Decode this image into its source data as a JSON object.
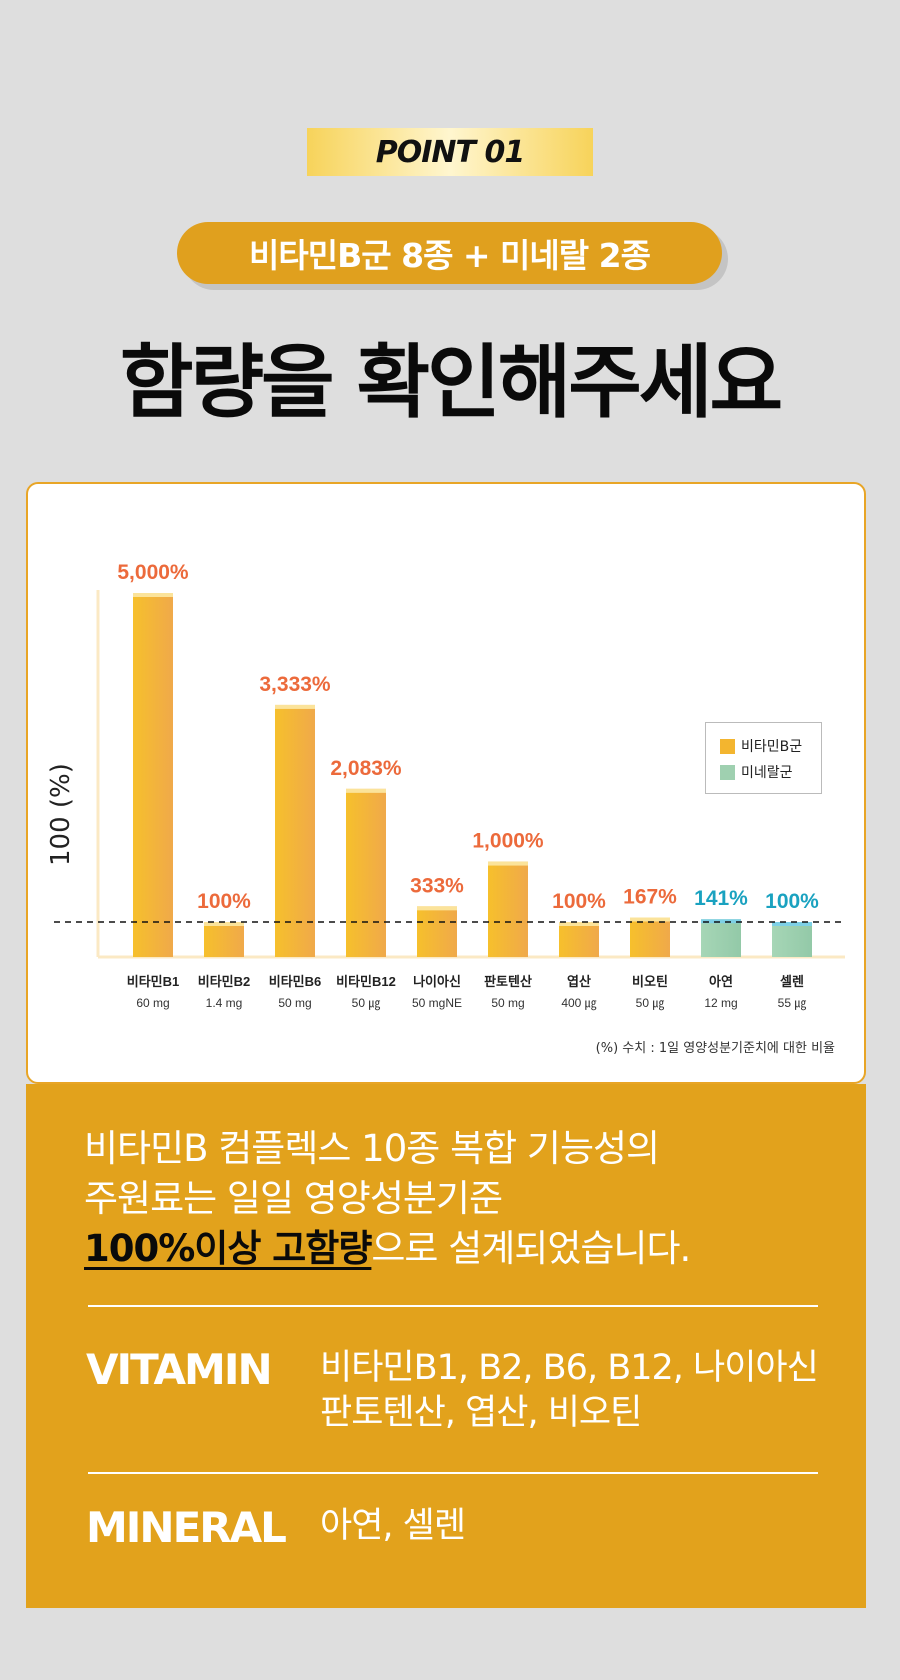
{
  "point_badge": "POINT 01",
  "pill_text": "비타민B군 8종 + 미네랄 2종",
  "headline": "함량을 확인해주세요",
  "legend": [
    {
      "label": "비타민B군",
      "color": "#f3b52f"
    },
    {
      "label": "미네랄군",
      "color": "#9fd0b0"
    }
  ],
  "footnote": "(%) 수치 : 1일 영양성분기준치에 대한 비율",
  "chart_data": {
    "type": "bar",
    "ylabel": "100 (%)",
    "reference_line": 100,
    "categories": [
      {
        "name": "비타민B1",
        "dose": "60 mg",
        "value": 5000,
        "label": "5,000%",
        "group": "vitamin"
      },
      {
        "name": "비타민B2",
        "dose": "1.4 mg",
        "value": 100,
        "label": "100%",
        "group": "vitamin"
      },
      {
        "name": "비타민B6",
        "dose": "50 mg",
        "value": 3333,
        "label": "3,333%",
        "group": "vitamin"
      },
      {
        "name": "비타민B12",
        "dose": "50 ㎍",
        "value": 2083,
        "label": "2,083%",
        "group": "vitamin"
      },
      {
        "name": "나이아신",
        "dose": "50 mgNE",
        "value": 333,
        "label": "333%",
        "group": "vitamin"
      },
      {
        "name": "판토텐산",
        "dose": "50 mg",
        "value": 1000,
        "label": "1,000%",
        "group": "vitamin"
      },
      {
        "name": "엽산",
        "dose": "400 ㎍",
        "value": 100,
        "label": "100%",
        "group": "vitamin"
      },
      {
        "name": "비오틴",
        "dose": "50 ㎍",
        "value": 167,
        "label": "167%",
        "group": "vitamin"
      },
      {
        "name": "아연",
        "dose": "12 mg",
        "value": 141,
        "label": "141%",
        "group": "mineral"
      },
      {
        "name": "셀렌",
        "dose": "55 ㎍",
        "value": 100,
        "label": "100%",
        "group": "mineral"
      }
    ],
    "colors": {
      "vitamin": "#f3b52f",
      "vitamin_label": "#ec6a3b",
      "mineral": "#9fd0b0",
      "mineral_label": "#1aa2c0"
    },
    "grid": false,
    "legend_position": "top-right"
  },
  "description": {
    "line1": "비타민B 컴플렉스 10종 복합 기능성의",
    "line2": "주원료는 일일 영양성분기준",
    "highlight": "100%이상 고함량",
    "line3_rest": "으로 설계되었습니다."
  },
  "vitamin": {
    "label": "VITAMIN",
    "line1": "비타민B1, B2, B6, B12, 나이아신",
    "line2": "판토텐산, 엽산, 비오틴"
  },
  "mineral": {
    "label": "MINERAL",
    "items": "아연, 셀렌"
  }
}
